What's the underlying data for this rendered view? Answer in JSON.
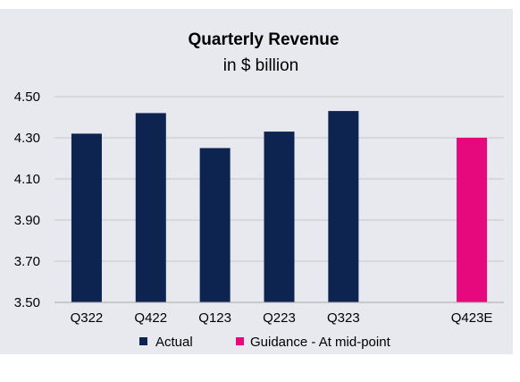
{
  "chart_data": {
    "type": "bar",
    "title": "Quarterly Revenue",
    "subtitle": "in $ billion",
    "categories": [
      "Q322",
      "Q422",
      "Q123",
      "Q223",
      "Q323",
      "",
      "Q423E"
    ],
    "series": [
      {
        "name": "Actual",
        "color": "#0d2451",
        "values": [
          4.32,
          4.42,
          4.25,
          4.33,
          4.43,
          null,
          null
        ]
      },
      {
        "name": "Guidance - At mid-point",
        "color": "#e6087d",
        "values": [
          null,
          null,
          null,
          null,
          null,
          null,
          4.3
        ]
      }
    ],
    "yticks": [
      "4.50",
      "4.30",
      "4.10",
      "3.90",
      "3.70",
      "3.50"
    ],
    "ylim": [
      3.5,
      4.5
    ],
    "grid": true,
    "legend_position": "bottom"
  }
}
